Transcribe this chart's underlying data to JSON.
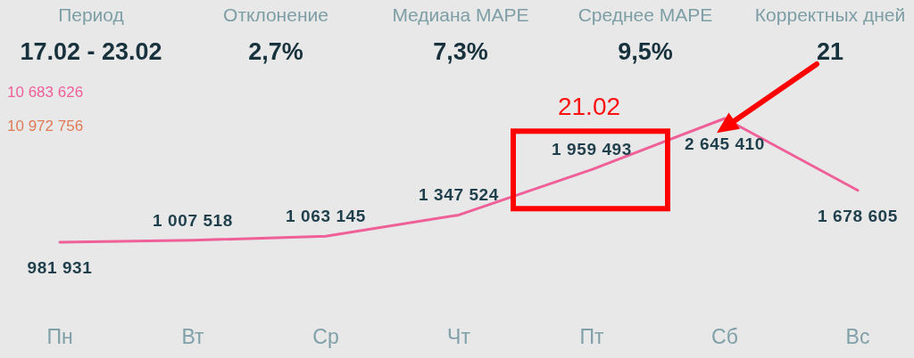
{
  "chart_data": [
    {
      "type": "other",
      "categories": [
        "Период",
        "Отклонение",
        "Медиана MAPE",
        "Среднее MAPE",
        "Корректных дней"
      ],
      "value_labels": [
        "17.02 - 23.02",
        "2,7%",
        "7,3%",
        "9,5%",
        "21"
      ]
    },
    {
      "type": "line",
      "categories": [
        "Пн",
        "Вт",
        "Ср",
        "Чт",
        "Пт",
        "Сб",
        "Вс"
      ],
      "series": [
        {
          "name": "10 683 626",
          "color": "#ef5f98",
          "values": [
            981931,
            1007518,
            1063145,
            1347524,
            1959493,
            2645410,
            1678605
          ]
        }
      ],
      "data_labels": true,
      "legend": "top left",
      "annotations": [
        "10 972 756",
        {
          "text": "21.02",
          "x": "Пт",
          "y": 1959493
        }
      ]
    }
  ]
}
